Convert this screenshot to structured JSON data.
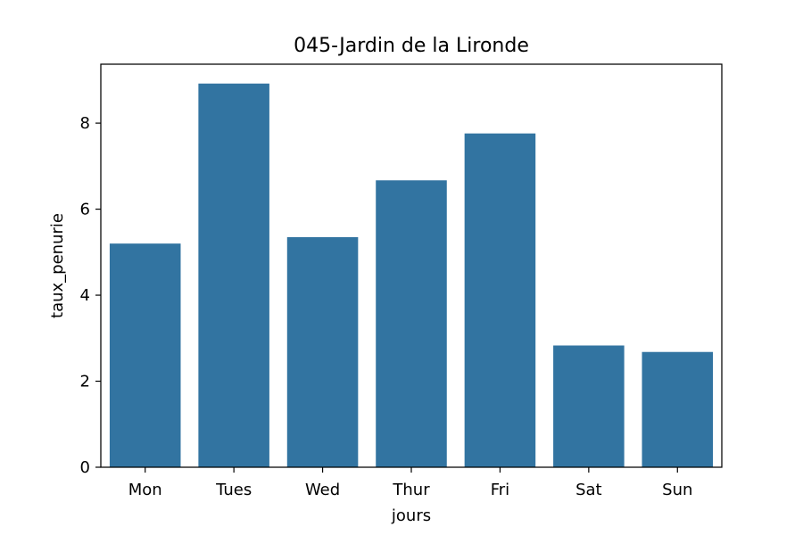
{
  "chart_data": {
    "type": "bar",
    "title": "045-Jardin de la Lironde",
    "xlabel": "jours",
    "ylabel": "taux_penurie",
    "categories": [
      "Mon",
      "Tues",
      "Wed",
      "Thur",
      "Fri",
      "Sat",
      "Sun"
    ],
    "values": [
      5.2,
      8.92,
      5.35,
      6.67,
      7.76,
      2.83,
      2.68
    ],
    "ylim": [
      0,
      9.37
    ],
    "yticks": [
      "0",
      "2",
      "4",
      "6",
      "8"
    ],
    "bar_color": "#3274a1",
    "grid": false,
    "legend": "none"
  }
}
